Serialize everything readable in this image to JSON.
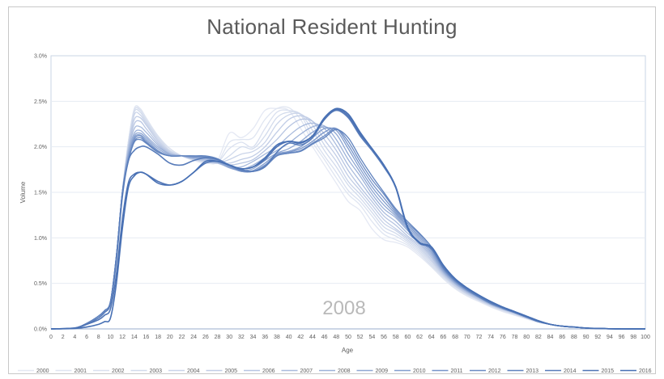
{
  "chart_data": {
    "type": "line",
    "title": "National Resident Hunting",
    "xlabel": "Age",
    "ylabel": "Volume",
    "xlim": [
      0,
      100
    ],
    "ylim": [
      0,
      3.0
    ],
    "x_ticks": [
      0,
      2,
      4,
      6,
      8,
      10,
      12,
      14,
      16,
      18,
      20,
      22,
      24,
      26,
      28,
      30,
      32,
      34,
      36,
      38,
      40,
      42,
      44,
      46,
      48,
      50,
      52,
      54,
      56,
      58,
      60,
      62,
      64,
      66,
      68,
      70,
      72,
      74,
      76,
      78,
      80,
      82,
      84,
      86,
      88,
      90,
      92,
      94,
      96,
      98,
      100
    ],
    "y_ticks": [
      "0.0%",
      "0.5%",
      "1.0%",
      "1.5%",
      "2.0%",
      "2.5%",
      "3.0%"
    ],
    "y_tick_values": [
      0,
      0.5,
      1.0,
      1.5,
      2.0,
      2.5,
      3.0
    ],
    "grid": "horizontal",
    "legend_position": "bottom",
    "annotation": "2008",
    "x": [
      0,
      4,
      6,
      8,
      9,
      10,
      11,
      12,
      13,
      14,
      15,
      16,
      18,
      20,
      22,
      24,
      26,
      28,
      30,
      32,
      34,
      36,
      38,
      40,
      42,
      44,
      46,
      48,
      50,
      52,
      54,
      56,
      58,
      60,
      62,
      64,
      66,
      68,
      70,
      72,
      74,
      76,
      78,
      80,
      82,
      84,
      86,
      88,
      90,
      92,
      96,
      100
    ],
    "series": [
      {
        "name": "2000",
        "color": "#e4e8f3",
        "values": [
          0,
          0.01,
          0.06,
          0.14,
          0.2,
          0.3,
          0.8,
          1.5,
          2.05,
          2.4,
          2.41,
          2.3,
          2.1,
          1.98,
          1.9,
          1.85,
          1.82,
          1.85,
          2.15,
          2.1,
          2.2,
          2.4,
          2.42,
          2.4,
          2.2,
          2.0,
          1.8,
          1.6,
          1.4,
          1.3,
          1.1,
          0.98,
          0.95,
          0.9,
          0.8,
          0.68,
          0.55,
          0.44,
          0.36,
          0.3,
          0.24,
          0.19,
          0.15,
          0.11,
          0.07,
          0.05,
          0.03,
          0.02,
          0.01,
          0.005,
          0,
          0
        ]
      },
      {
        "name": "2001",
        "color": "#dfe5f1",
        "values": [
          0,
          0.01,
          0.06,
          0.14,
          0.2,
          0.3,
          0.8,
          1.5,
          2.05,
          2.42,
          2.42,
          2.32,
          2.12,
          1.98,
          1.9,
          1.86,
          1.83,
          1.83,
          2.05,
          2.08,
          2.1,
          2.3,
          2.42,
          2.43,
          2.3,
          2.05,
          1.86,
          1.66,
          1.48,
          1.36,
          1.18,
          1.04,
          0.98,
          0.92,
          0.82,
          0.69,
          0.56,
          0.45,
          0.37,
          0.31,
          0.25,
          0.2,
          0.16,
          0.12,
          0.08,
          0.05,
          0.03,
          0.02,
          0.01,
          0.005,
          0,
          0
        ]
      },
      {
        "name": "2002",
        "color": "#d9e0ef",
        "values": [
          0,
          0.01,
          0.06,
          0.14,
          0.2,
          0.3,
          0.8,
          1.5,
          2.05,
          2.4,
          2.4,
          2.3,
          2.12,
          1.98,
          1.9,
          1.86,
          1.84,
          1.83,
          1.98,
          2.05,
          2.0,
          2.2,
          2.38,
          2.4,
          2.35,
          2.1,
          1.9,
          1.72,
          1.52,
          1.4,
          1.24,
          1.08,
          1.02,
          0.94,
          0.84,
          0.7,
          0.57,
          0.46,
          0.38,
          0.31,
          0.25,
          0.2,
          0.16,
          0.12,
          0.08,
          0.05,
          0.03,
          0.02,
          0.01,
          0.005,
          0,
          0
        ]
      },
      {
        "name": "2003",
        "color": "#d2dbec",
        "values": [
          0,
          0.01,
          0.06,
          0.14,
          0.2,
          0.3,
          0.8,
          1.5,
          2.02,
          2.38,
          2.38,
          2.28,
          2.1,
          1.96,
          1.9,
          1.86,
          1.84,
          1.82,
          1.9,
          2.0,
          1.98,
          2.12,
          2.32,
          2.38,
          2.36,
          2.18,
          1.96,
          1.78,
          1.58,
          1.44,
          1.28,
          1.12,
          1.05,
          0.96,
          0.86,
          0.72,
          0.58,
          0.47,
          0.38,
          0.32,
          0.26,
          0.21,
          0.16,
          0.12,
          0.08,
          0.05,
          0.03,
          0.02,
          0.01,
          0.005,
          0,
          0
        ]
      },
      {
        "name": "2004",
        "color": "#cad4e9",
        "values": [
          0,
          0.01,
          0.06,
          0.14,
          0.2,
          0.3,
          0.8,
          1.5,
          2.0,
          2.35,
          2.35,
          2.26,
          2.08,
          1.95,
          1.9,
          1.86,
          1.84,
          1.82,
          1.86,
          1.92,
          1.95,
          2.05,
          2.25,
          2.35,
          2.36,
          2.24,
          2.02,
          1.84,
          1.62,
          1.48,
          1.32,
          1.16,
          1.08,
          0.98,
          0.88,
          0.74,
          0.59,
          0.47,
          0.39,
          0.32,
          0.26,
          0.21,
          0.17,
          0.12,
          0.08,
          0.05,
          0.03,
          0.02,
          0.01,
          0.005,
          0,
          0
        ]
      },
      {
        "name": "2005",
        "color": "#c1cde6",
        "values": [
          0,
          0.01,
          0.06,
          0.14,
          0.2,
          0.3,
          0.8,
          1.5,
          2.0,
          2.3,
          2.32,
          2.24,
          2.06,
          1.94,
          1.9,
          1.86,
          1.84,
          1.82,
          1.82,
          1.86,
          1.9,
          2.0,
          2.16,
          2.3,
          2.34,
          2.28,
          2.08,
          1.9,
          1.68,
          1.52,
          1.36,
          1.2,
          1.1,
          1.0,
          0.9,
          0.76,
          0.6,
          0.48,
          0.39,
          0.32,
          0.26,
          0.21,
          0.17,
          0.12,
          0.08,
          0.05,
          0.03,
          0.02,
          0.01,
          0.005,
          0,
          0
        ]
      },
      {
        "name": "2006",
        "color": "#b7c5e2",
        "values": [
          0,
          0.01,
          0.06,
          0.14,
          0.2,
          0.3,
          0.8,
          1.5,
          1.98,
          2.25,
          2.28,
          2.2,
          2.04,
          1.93,
          1.9,
          1.87,
          1.85,
          1.82,
          1.8,
          1.82,
          1.86,
          1.96,
          2.08,
          2.22,
          2.3,
          2.28,
          2.14,
          1.96,
          1.74,
          1.56,
          1.4,
          1.24,
          1.14,
          1.02,
          0.92,
          0.78,
          0.61,
          0.49,
          0.4,
          0.33,
          0.27,
          0.22,
          0.17,
          0.12,
          0.08,
          0.05,
          0.03,
          0.02,
          0.01,
          0.005,
          0,
          0
        ]
      },
      {
        "name": "2007",
        "color": "#a9bbdd",
        "values": [
          0,
          0.01,
          0.06,
          0.14,
          0.2,
          0.3,
          0.8,
          1.5,
          1.95,
          2.2,
          2.22,
          2.16,
          2.02,
          1.92,
          1.9,
          1.87,
          1.86,
          1.82,
          1.78,
          1.78,
          1.84,
          1.92,
          2.0,
          2.12,
          2.22,
          2.26,
          2.2,
          2.02,
          1.8,
          1.62,
          1.44,
          1.28,
          1.18,
          1.05,
          0.94,
          0.8,
          0.62,
          0.5,
          0.41,
          0.34,
          0.27,
          0.22,
          0.18,
          0.13,
          0.08,
          0.05,
          0.03,
          0.02,
          0.01,
          0.005,
          0,
          0
        ]
      },
      {
        "name": "2008",
        "color": "#9cb1d8",
        "values": [
          0,
          0.01,
          0.06,
          0.14,
          0.2,
          0.3,
          0.8,
          1.5,
          1.93,
          2.15,
          2.18,
          2.12,
          2.0,
          1.92,
          1.9,
          1.88,
          1.87,
          1.83,
          1.77,
          1.75,
          1.8,
          1.88,
          1.96,
          2.04,
          2.14,
          2.22,
          2.23,
          2.08,
          1.86,
          1.68,
          1.48,
          1.32,
          1.22,
          1.08,
          0.96,
          0.82,
          0.63,
          0.5,
          0.41,
          0.34,
          0.27,
          0.22,
          0.18,
          0.13,
          0.08,
          0.05,
          0.03,
          0.02,
          0.01,
          0.005,
          0,
          0
        ]
      },
      {
        "name": "2009",
        "color": "#8fa7d3",
        "values": [
          0,
          0.01,
          0.06,
          0.14,
          0.2,
          0.3,
          0.8,
          1.5,
          1.9,
          2.12,
          2.15,
          2.1,
          1.98,
          1.91,
          1.9,
          1.88,
          1.88,
          1.84,
          1.77,
          1.74,
          1.76,
          1.85,
          1.93,
          1.98,
          2.06,
          2.16,
          2.22,
          2.14,
          1.92,
          1.72,
          1.52,
          1.36,
          1.24,
          1.1,
          0.98,
          0.84,
          0.64,
          0.51,
          0.42,
          0.35,
          0.28,
          0.22,
          0.18,
          0.13,
          0.08,
          0.05,
          0.03,
          0.02,
          0.01,
          0.005,
          0,
          0
        ]
      },
      {
        "name": "2010",
        "color": "#839ece",
        "values": [
          0,
          0.01,
          0.06,
          0.14,
          0.2,
          0.3,
          0.8,
          1.5,
          1.88,
          2.1,
          2.13,
          2.08,
          1.96,
          1.9,
          1.9,
          1.89,
          1.88,
          1.85,
          1.78,
          1.73,
          1.74,
          1.82,
          1.92,
          1.95,
          2.0,
          2.1,
          2.2,
          2.18,
          1.98,
          1.76,
          1.56,
          1.4,
          1.26,
          1.12,
          1.0,
          0.86,
          0.65,
          0.52,
          0.42,
          0.35,
          0.28,
          0.23,
          0.18,
          0.13,
          0.08,
          0.05,
          0.03,
          0.02,
          0.01,
          0.005,
          0,
          0
        ]
      },
      {
        "name": "2011",
        "color": "#7794c9",
        "values": [
          0,
          0.01,
          0.06,
          0.14,
          0.2,
          0.3,
          0.8,
          1.5,
          1.86,
          2.08,
          2.12,
          2.06,
          1.95,
          1.9,
          1.9,
          1.89,
          1.89,
          1.86,
          1.79,
          1.73,
          1.73,
          1.8,
          1.91,
          1.94,
          1.98,
          2.06,
          2.16,
          2.2,
          2.02,
          1.8,
          1.6,
          1.44,
          1.28,
          1.14,
          1.02,
          0.88,
          0.66,
          0.52,
          0.43,
          0.35,
          0.28,
          0.23,
          0.18,
          0.13,
          0.08,
          0.05,
          0.03,
          0.02,
          0.01,
          0.005,
          0,
          0
        ]
      },
      {
        "name": "2012",
        "color": "#6b8bc3",
        "values": [
          0,
          0.01,
          0.06,
          0.14,
          0.2,
          0.3,
          0.8,
          1.5,
          1.85,
          2.06,
          2.1,
          2.05,
          1.95,
          1.9,
          1.9,
          1.9,
          1.89,
          1.86,
          1.8,
          1.74,
          1.73,
          1.79,
          1.9,
          1.93,
          1.96,
          2.04,
          2.12,
          2.2,
          2.06,
          1.84,
          1.64,
          1.48,
          1.3,
          1.16,
          1.04,
          0.9,
          0.67,
          0.53,
          0.43,
          0.35,
          0.28,
          0.23,
          0.18,
          0.13,
          0.08,
          0.05,
          0.03,
          0.02,
          0.01,
          0.005,
          0,
          0
        ]
      },
      {
        "name": "2013",
        "color": "#6083be",
        "values": [
          0,
          0.01,
          0.06,
          0.14,
          0.2,
          0.3,
          0.8,
          1.5,
          1.84,
          2.05,
          2.08,
          2.04,
          1.94,
          1.9,
          1.9,
          1.9,
          1.9,
          1.87,
          1.8,
          1.74,
          1.73,
          1.78,
          1.9,
          1.93,
          1.95,
          2.03,
          2.1,
          2.19,
          2.1,
          1.88,
          1.68,
          1.5,
          1.32,
          1.18,
          1.05,
          0.9,
          0.67,
          0.53,
          0.43,
          0.35,
          0.28,
          0.23,
          0.18,
          0.13,
          0.08,
          0.05,
          0.03,
          0.02,
          0.01,
          0.005,
          0,
          0
        ]
      },
      {
        "name": "2014",
        "color": "#587cba",
        "values": [
          0,
          0.01,
          0.05,
          0.12,
          0.18,
          0.28,
          0.75,
          1.45,
          1.84,
          1.96,
          2.0,
          2.0,
          1.92,
          1.82,
          1.8,
          1.85,
          1.88,
          1.86,
          1.8,
          1.75,
          1.73,
          1.78,
          1.94,
          2.04,
          2.02,
          2.1,
          2.3,
          2.4,
          2.32,
          2.12,
          1.96,
          1.78,
          1.55,
          1.1,
          0.95,
          0.88,
          0.68,
          0.54,
          0.44,
          0.36,
          0.29,
          0.23,
          0.18,
          0.13,
          0.08,
          0.05,
          0.03,
          0.02,
          0.01,
          0.005,
          0,
          0
        ]
      },
      {
        "name": "2015",
        "color": "#4f74b5",
        "values": [
          0,
          0.01,
          0.05,
          0.1,
          0.15,
          0.22,
          0.6,
          1.2,
          1.6,
          1.7,
          1.72,
          1.7,
          1.62,
          1.58,
          1.62,
          1.72,
          1.82,
          1.84,
          1.8,
          1.76,
          1.78,
          1.86,
          2.0,
          2.06,
          2.04,
          2.12,
          2.3,
          2.41,
          2.34,
          2.14,
          1.98,
          1.8,
          1.56,
          1.12,
          0.94,
          0.9,
          0.7,
          0.55,
          0.45,
          0.37,
          0.3,
          0.24,
          0.19,
          0.14,
          0.09,
          0.05,
          0.03,
          0.02,
          0.01,
          0.005,
          0,
          0
        ]
      },
      {
        "name": "2016",
        "color": "#4770b4",
        "values": [
          0,
          0.005,
          0.02,
          0.05,
          0.08,
          0.12,
          0.5,
          1.1,
          1.55,
          1.68,
          1.72,
          1.7,
          1.6,
          1.58,
          1.62,
          1.72,
          1.84,
          1.84,
          1.8,
          1.76,
          1.78,
          1.88,
          2.02,
          2.06,
          2.05,
          2.12,
          2.32,
          2.42,
          2.36,
          2.16,
          1.98,
          1.8,
          1.56,
          1.12,
          0.95,
          0.9,
          0.7,
          0.55,
          0.45,
          0.37,
          0.3,
          0.24,
          0.19,
          0.14,
          0.09,
          0.05,
          0.03,
          0.02,
          0.01,
          0.005,
          0,
          0
        ]
      }
    ]
  }
}
